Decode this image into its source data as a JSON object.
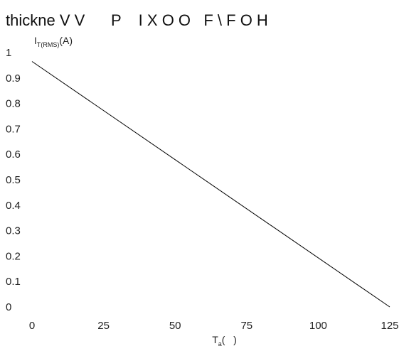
{
  "chart_data": {
    "type": "line",
    "title": "thickne V V      P    I X O O   F \\ F O H",
    "ylabel_main": "I",
    "ylabel_sub": "T(RMS)",
    "ylabel_unit": "(A)",
    "xlabel_main": "T",
    "xlabel_sub": "a",
    "xlabel_unit": "(   )",
    "xlim": [
      0,
      125
    ],
    "ylim": [
      0,
      1
    ],
    "x_ticks": [
      "0",
      "25",
      "50",
      "75",
      "100",
      "125"
    ],
    "y_ticks": [
      "0",
      "0.1",
      "0.2",
      "0.3",
      "0.4",
      "0.5",
      "0.6",
      "0.7",
      "0.8",
      "0.9",
      "1"
    ],
    "grid": false,
    "series": [
      {
        "x": [
          0,
          125
        ],
        "y": [
          0.965,
          0
        ]
      }
    ],
    "line_color": "#000000"
  }
}
